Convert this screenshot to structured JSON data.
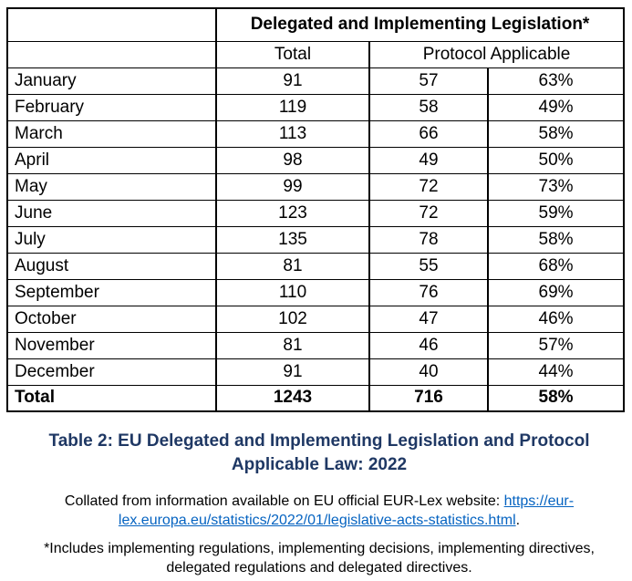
{
  "table": {
    "header": {
      "span_title": "Delegated and Implementing Legislation*",
      "col_total": "Total",
      "col_protocol": "Protocol Applicable"
    },
    "rows": [
      {
        "label": "January",
        "total": "91",
        "protocol": "57",
        "pct": "63%"
      },
      {
        "label": "February",
        "total": "119",
        "protocol": "58",
        "pct": "49%"
      },
      {
        "label": "March",
        "total": "113",
        "protocol": "66",
        "pct": "58%"
      },
      {
        "label": "April",
        "total": "98",
        "protocol": "49",
        "pct": "50%"
      },
      {
        "label": "May",
        "total": "99",
        "protocol": "72",
        "pct": "73%"
      },
      {
        "label": "June",
        "total": "123",
        "protocol": "72",
        "pct": "59%"
      },
      {
        "label": "July",
        "total": "135",
        "protocol": "78",
        "pct": "58%"
      },
      {
        "label": "August",
        "total": "81",
        "protocol": "55",
        "pct": "68%"
      },
      {
        "label": "September",
        "total": "110",
        "protocol": "76",
        "pct": "69%"
      },
      {
        "label": "October",
        "total": "102",
        "protocol": "47",
        "pct": "46%"
      },
      {
        "label": "November",
        "total": "81",
        "protocol": "46",
        "pct": "57%"
      },
      {
        "label": "December",
        "total": "91",
        "protocol": "40",
        "pct": "44%"
      }
    ],
    "total_row": {
      "label": "Total",
      "total": "1243",
      "protocol": "716",
      "pct": "58%"
    }
  },
  "caption": "Table 2: EU Delegated and Implementing Legislation and Protocol Applicable Law: 2022",
  "source_note": {
    "prefix": "Collated from information available on EU official EUR-Lex website: ",
    "link_text": "https://eur-lex.europa.eu/statistics/2022/01/legislative-acts-statistics.html",
    "suffix": "."
  },
  "footnote": {
    "marker": "*",
    "text": "Includes implementing regulations, implementing decisions, implementing directives, delegated regulations and delegated directives."
  },
  "colors": {
    "caption_navy": "#1F3864",
    "link_blue": "#0563C1",
    "border_black": "#000000"
  }
}
